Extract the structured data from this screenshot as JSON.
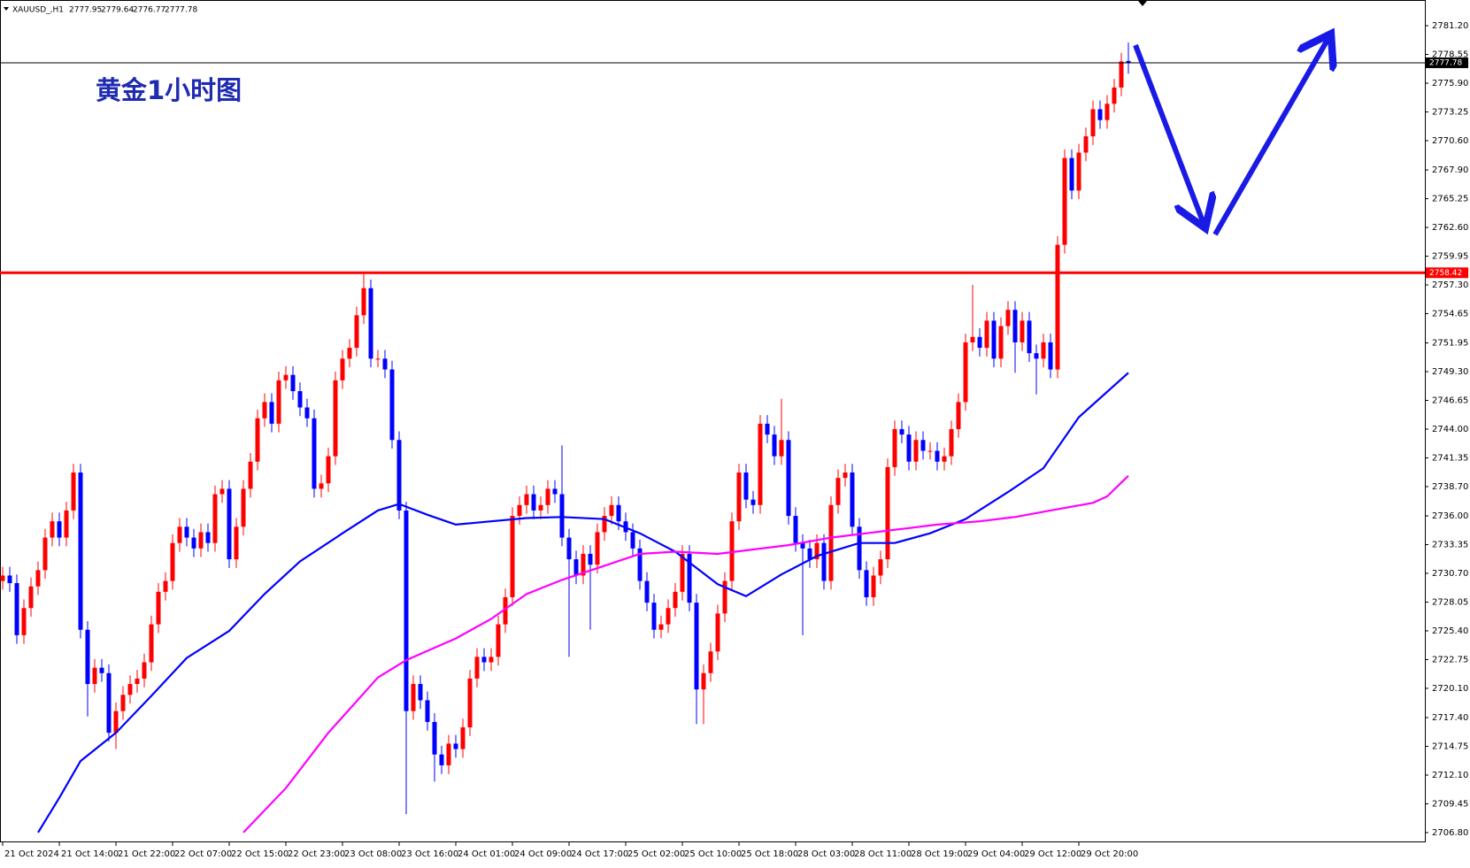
{
  "chart_data": {
    "type": "candlestick",
    "symbol": "XAUUSD_,H1",
    "annotation": "黄金1小时图",
    "up_color": "#ff0000",
    "down_color": "#0000ff",
    "categories": [
      "21 Oct 2024",
      null,
      null,
      null,
      null,
      null,
      null,
      null,
      "21 Oct 14:00",
      null,
      null,
      null,
      null,
      null,
      null,
      null,
      "21 Oct 22:00",
      null,
      null,
      null,
      null,
      null,
      null,
      null,
      "22 Oct 07:00",
      null,
      null,
      null,
      null,
      null,
      null,
      null,
      "22 Oct 15:00",
      null,
      null,
      null,
      null,
      null,
      null,
      null,
      "22 Oct 23:00",
      null,
      null,
      null,
      null,
      null,
      null,
      null,
      "23 Oct 08:00",
      null,
      null,
      null,
      null,
      null,
      null,
      null,
      "23 Oct 16:00",
      null,
      null,
      null,
      null,
      null,
      null,
      null,
      "24 Oct 01:00",
      null,
      null,
      null,
      null,
      null,
      null,
      null,
      "24 Oct 09:00",
      null,
      null,
      null,
      null,
      null,
      null,
      null,
      "24 Oct 17:00",
      null,
      null,
      null,
      null,
      null,
      null,
      null,
      "25 Oct 02:00",
      null,
      null,
      null,
      null,
      null,
      null,
      null,
      "25 Oct 10:00",
      null,
      null,
      null,
      null,
      null,
      null,
      null,
      "25 Oct 18:00",
      null,
      null,
      null,
      null,
      null,
      null,
      null,
      "28 Oct 03:00",
      null,
      null,
      null,
      null,
      null,
      null,
      null,
      "28 Oct 11:00",
      null,
      null,
      null,
      null,
      null,
      null,
      null,
      "28 Oct 19:00",
      null,
      null,
      null,
      null,
      null,
      null,
      null,
      "29 Oct 04:00",
      null,
      null,
      null,
      null,
      null,
      null,
      null,
      "29 Oct 12:00",
      null,
      null,
      null,
      null,
      null,
      null,
      null,
      "29 Oct 20:00",
      null,
      null,
      null,
      null,
      null,
      null,
      null
    ],
    "open": [
      2730.0,
      2730.5,
      2729.8,
      2725.0,
      2727.5,
      2729.5,
      2731.0,
      2734.0,
      2735.5,
      2734.0,
      2736.5,
      2740.0,
      2725.5,
      2720.5,
      2722.0,
      2721.5,
      2716.0,
      2718.0,
      2719.5,
      2720.5,
      2721.0,
      2722.5,
      2726.0,
      2729.0,
      2730.0,
      2733.5,
      2735.0,
      2734.0,
      2733.0,
      2734.5,
      2733.5,
      2738.0,
      2738.5,
      2732.0,
      2735.0,
      2738.5,
      2741.0,
      2745.0,
      2746.5,
      2744.5,
      2748.5,
      2749.0,
      2747.5,
      2746.0,
      2745.0,
      2738.5,
      2739.0,
      2741.5,
      2748.5,
      2750.5,
      2751.5,
      2754.5,
      2757.0,
      2750.5,
      2750.5,
      2749.5,
      2743.0,
      2736.5,
      2718.0,
      2720.5,
      2719.0,
      2717.0,
      2714.0,
      2713.0,
      2715.0,
      2714.5,
      2716.5,
      2721.0,
      2723.0,
      2722.5,
      2723.0,
      2726.0,
      2728.5,
      2736.0,
      2737.0,
      2738.0,
      2736.5,
      2737.0,
      2738.5,
      2738.0,
      2734.0,
      2732.0,
      2730.5,
      2732.5,
      2731.5,
      2734.5,
      2736.0,
      2737.0,
      2735.5,
      2734.5,
      2733.0,
      2730.0,
      2728.0,
      2725.5,
      2726.0,
      2727.5,
      2729.0,
      2732.5,
      2728.0,
      2720.0,
      2721.5,
      2723.5,
      2727.0,
      2730.0,
      2735.5,
      2740.0,
      2737.5,
      2737.0,
      2744.5,
      2743.5,
      2741.5,
      2743.0,
      2736.0,
      2733.5,
      2733.0,
      2732.0,
      2733.5,
      2730.0,
      2737.0,
      2739.5,
      2740.0,
      2735.0,
      2731.0,
      2728.5,
      2730.5,
      2732.0,
      2740.5,
      2744.0,
      2743.5,
      2741.0,
      2743.0,
      2742.0,
      2742.0,
      2741.0,
      2741.5,
      2744.0,
      2746.5,
      2752.0,
      2752.5,
      2751.5,
      2754.0,
      2750.5,
      2753.5,
      2755.0,
      2752.0,
      2754.0,
      2751.0,
      2750.5,
      2752.0,
      2749.5,
      2761.0,
      2769.0,
      2766.0,
      2769.5,
      2771.0,
      2773.5,
      2772.5,
      2774.0,
      2775.5,
      2777.95
    ],
    "high": [
      2731.3,
      2731.3,
      2730.6,
      2728.3,
      2730.3,
      2731.8,
      2734.8,
      2736.3,
      2736.3,
      2737.3,
      2740.8,
      2740.8,
      2726.3,
      2722.8,
      2722.8,
      2722.3,
      2718.8,
      2720.3,
      2721.3,
      2721.8,
      2723.3,
      2726.8,
      2729.8,
      2730.8,
      2734.3,
      2735.8,
      2735.8,
      2734.8,
      2735.3,
      2735.3,
      2738.8,
      2739.3,
      2739.3,
      2735.8,
      2739.3,
      2741.8,
      2745.8,
      2747.3,
      2747.3,
      2749.3,
      2749.8,
      2749.8,
      2748.3,
      2746.8,
      2745.8,
      2739.8,
      2742.3,
      2749.3,
      2751.3,
      2752.3,
      2755.3,
      2758.3,
      2757.8,
      2751.3,
      2751.3,
      2750.3,
      2743.8,
      2737.3,
      2721.3,
      2721.3,
      2719.8,
      2717.8,
      2714.8,
      2715.8,
      2715.8,
      2717.3,
      2721.8,
      2723.8,
      2723.8,
      2723.8,
      2726.8,
      2729.3,
      2736.8,
      2737.8,
      2738.8,
      2738.8,
      2737.8,
      2739.3,
      2739.3,
      2742.5,
      2734.8,
      2732.8,
      2733.3,
      2733.3,
      2735.3,
      2736.8,
      2737.8,
      2737.8,
      2736.3,
      2735.3,
      2733.8,
      2730.8,
      2728.8,
      2726.8,
      2728.3,
      2729.8,
      2733.3,
      2733.3,
      2728.8,
      2722.3,
      2724.3,
      2727.8,
      2730.8,
      2736.3,
      2740.8,
      2740.8,
      2738.3,
      2745.3,
      2745.3,
      2744.3,
      2746.8,
      2743.8,
      2736.8,
      2734.3,
      2733.8,
      2734.3,
      2734.3,
      2737.8,
      2740.3,
      2740.8,
      2740.8,
      2735.8,
      2731.8,
      2731.3,
      2732.8,
      2741.3,
      2744.8,
      2744.8,
      2744.3,
      2743.8,
      2743.8,
      2742.8,
      2742.8,
      2742.3,
      2744.8,
      2747.3,
      2752.8,
      2757.3,
      2753.3,
      2754.8,
      2754.8,
      2754.3,
      2755.8,
      2755.8,
      2754.8,
      2754.8,
      2751.8,
      2752.8,
      2752.8,
      2761.8,
      2769.8,
      2769.8,
      2770.3,
      2771.8,
      2774.3,
      2774.3,
      2774.8,
      2776.3,
      2778.7,
      2779.64
    ],
    "low": [
      2729.2,
      2729.0,
      2724.2,
      2724.2,
      2726.7,
      2728.7,
      2730.2,
      2733.2,
      2733.2,
      2733.2,
      2735.7,
      2724.7,
      2717.5,
      2719.7,
      2720.7,
      2715.2,
      2714.5,
      2717.2,
      2718.7,
      2719.7,
      2720.2,
      2721.7,
      2725.2,
      2728.2,
      2729.2,
      2732.7,
      2733.2,
      2732.2,
      2732.2,
      2732.7,
      2732.7,
      2737.2,
      2731.2,
      2731.2,
      2734.2,
      2737.7,
      2740.2,
      2744.2,
      2743.7,
      2743.7,
      2747.7,
      2746.7,
      2745.2,
      2744.2,
      2737.7,
      2737.7,
      2738.2,
      2740.7,
      2747.7,
      2749.7,
      2750.7,
      2753.7,
      2749.7,
      2749.7,
      2748.7,
      2742.2,
      2735.7,
      2708.5,
      2717.2,
      2718.2,
      2716.2,
      2711.5,
      2712.2,
      2712.2,
      2713.7,
      2713.7,
      2715.7,
      2720.2,
      2721.7,
      2721.7,
      2722.2,
      2725.2,
      2727.7,
      2735.2,
      2736.2,
      2735.7,
      2735.7,
      2736.2,
      2737.2,
      2733.2,
      2723.0,
      2729.7,
      2729.7,
      2725.5,
      2730.7,
      2733.7,
      2735.2,
      2734.7,
      2733.7,
      2732.2,
      2729.2,
      2727.2,
      2724.7,
      2724.7,
      2725.2,
      2726.7,
      2728.2,
      2727.2,
      2716.8,
      2716.8,
      2720.7,
      2722.7,
      2726.2,
      2729.2,
      2734.7,
      2736.7,
      2736.2,
      2736.2,
      2742.7,
      2740.7,
      2740.7,
      2735.2,
      2732.7,
      2725.0,
      2731.2,
      2731.2,
      2729.2,
      2729.2,
      2736.2,
      2738.7,
      2734.2,
      2730.2,
      2727.7,
      2727.7,
      2729.7,
      2731.2,
      2739.7,
      2742.7,
      2740.2,
      2740.2,
      2741.2,
      2741.2,
      2740.2,
      2740.2,
      2740.7,
      2743.2,
      2745.7,
      2751.2,
      2750.7,
      2750.7,
      2749.7,
      2749.7,
      2752.7,
      2749.2,
      2751.2,
      2750.2,
      2747.2,
      2749.7,
      2748.7,
      2748.7,
      2760.2,
      2765.2,
      2765.2,
      2768.7,
      2770.2,
      2771.7,
      2771.7,
      2773.2,
      2774.7,
      2776.77
    ],
    "close": [
      2730.5,
      2729.8,
      2725.0,
      2727.5,
      2729.5,
      2731.0,
      2734.0,
      2735.5,
      2734.0,
      2736.5,
      2740.0,
      2725.5,
      2720.5,
      2722.0,
      2721.5,
      2716.0,
      2718.0,
      2719.5,
      2720.5,
      2721.0,
      2722.5,
      2726.0,
      2729.0,
      2730.0,
      2733.5,
      2735.0,
      2734.0,
      2733.0,
      2734.5,
      2733.5,
      2738.0,
      2738.5,
      2732.0,
      2735.0,
      2738.5,
      2741.0,
      2745.0,
      2746.5,
      2744.5,
      2748.5,
      2749.0,
      2747.5,
      2746.0,
      2745.0,
      2738.5,
      2739.0,
      2741.5,
      2748.5,
      2750.5,
      2751.5,
      2754.5,
      2757.0,
      2750.5,
      2750.5,
      2749.5,
      2743.0,
      2736.5,
      2718.0,
      2720.5,
      2719.0,
      2717.0,
      2714.0,
      2713.0,
      2715.0,
      2714.5,
      2716.5,
      2721.0,
      2723.0,
      2722.5,
      2723.0,
      2726.0,
      2728.5,
      2736.0,
      2737.0,
      2738.0,
      2736.5,
      2737.0,
      2738.5,
      2738.0,
      2734.0,
      2732.0,
      2730.5,
      2732.5,
      2731.5,
      2734.5,
      2736.0,
      2737.0,
      2735.5,
      2734.5,
      2733.0,
      2730.0,
      2728.0,
      2725.5,
      2726.0,
      2727.5,
      2729.0,
      2732.5,
      2728.0,
      2720.0,
      2721.5,
      2723.5,
      2727.0,
      2730.0,
      2735.5,
      2740.0,
      2737.5,
      2737.0,
      2744.5,
      2743.5,
      2741.5,
      2743.0,
      2736.0,
      2733.5,
      2733.0,
      2732.0,
      2733.5,
      2730.0,
      2737.0,
      2739.5,
      2740.0,
      2735.0,
      2731.0,
      2728.5,
      2730.5,
      2732.0,
      2740.5,
      2744.0,
      2743.5,
      2741.0,
      2743.0,
      2742.0,
      2742.0,
      2741.0,
      2741.5,
      2744.0,
      2746.5,
      2752.0,
      2752.5,
      2751.5,
      2754.0,
      2750.5,
      2753.5,
      2755.0,
      2752.0,
      2754.0,
      2751.0,
      2750.5,
      2752.0,
      2749.5,
      2761.0,
      2769.0,
      2766.0,
      2769.5,
      2771.0,
      2773.5,
      2772.5,
      2774.0,
      2775.5,
      2777.9,
      2777.78
    ],
    "moving_averages": [
      {
        "color": "#0000ff",
        "x": [
          5,
          8,
          11,
          16,
          21,
          26,
          32,
          37,
          42,
          48,
          53,
          56,
          60,
          64,
          69,
          74,
          79,
          85,
          90,
          95,
          101,
          105,
          110,
          115,
          121,
          126,
          131,
          136,
          142,
          147,
          152,
          159
        ],
        "values": [
          2706.8,
          2710.0,
          2713.4,
          2716.0,
          2719.4,
          2722.9,
          2725.4,
          2728.8,
          2731.8,
          2734.4,
          2736.5,
          2737.1,
          2736.1,
          2735.2,
          2735.5,
          2735.8,
          2735.9,
          2735.7,
          2734.4,
          2732.7,
          2729.7,
          2728.6,
          2730.6,
          2732.3,
          2733.5,
          2733.5,
          2734.4,
          2735.7,
          2738.2,
          2740.4,
          2745.1,
          2749.2
        ]
      },
      {
        "color": "#ff00ff",
        "x": [
          34,
          40,
          46,
          53,
          57,
          64,
          69,
          74,
          79,
          85,
          90,
          95,
          101,
          106,
          111,
          117,
          122,
          127,
          132,
          138,
          143,
          148,
          154,
          156,
          159
        ],
        "values": [
          2706.8,
          2710.9,
          2716.0,
          2721.1,
          2722.7,
          2724.7,
          2726.5,
          2728.8,
          2730.1,
          2731.4,
          2732.5,
          2732.7,
          2732.5,
          2732.9,
          2733.3,
          2734.0,
          2734.4,
          2734.8,
          2735.2,
          2735.5,
          2735.9,
          2736.5,
          2737.2,
          2737.8,
          2739.7
        ]
      }
    ],
    "hline": {
      "value": 2758.42,
      "color": "#ff0000"
    },
    "ylim": [
      2705.98,
      2783.57
    ],
    "yticks": [
      {
        "value": 2706.8,
        "label": "2706.80"
      },
      2709.45,
      {
        "value": 2712.1,
        "label": "2712.10"
      },
      2714.75,
      {
        "value": 2717.4,
        "label": "2717.40"
      },
      {
        "value": 2720.1,
        "label": "2720.10"
      },
      2722.75,
      {
        "value": 2725.4,
        "label": "2725.40"
      },
      2728.05,
      {
        "value": 2730.7,
        "label": "2730.70"
      },
      2733.35,
      {
        "value": 2736.0,
        "label": "2736.00"
      },
      {
        "value": 2738.7,
        "label": "2738.70"
      },
      2741.35,
      {
        "value": 2744.0,
        "label": "2744.00"
      },
      2746.65,
      {
        "value": 2749.3,
        "label": "2749.30"
      },
      2751.95,
      2754.65,
      {
        "value": 2757.3,
        "label": "2757.30"
      },
      2759.95,
      {
        "value": 2762.6,
        "label": "2762.60"
      },
      2765.25,
      {
        "value": 2767.9,
        "label": "2767.90"
      },
      {
        "value": 2770.6,
        "label": "2770.60"
      },
      2773.25,
      {
        "value": 2775.9,
        "label": "2775.90"
      },
      2778.55,
      {
        "value": 2781.2,
        "label": "2781.20"
      }
    ]
  }
}
